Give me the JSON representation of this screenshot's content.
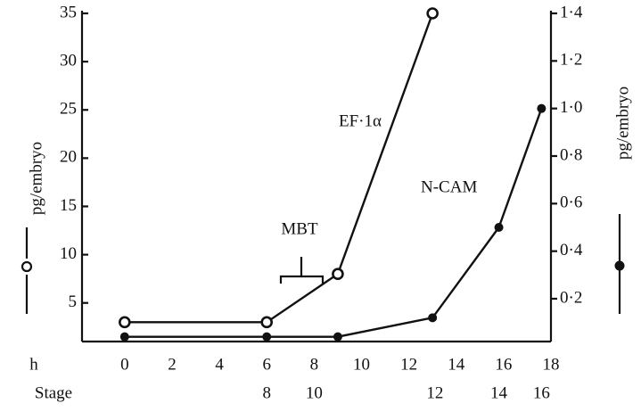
{
  "chart_data": {
    "type": "line",
    "xlabel": "h",
    "x2label": "Stage",
    "ylabel": "pg/embryo",
    "y2label": "pg/embryo",
    "xlim": [
      -1.8,
      18
    ],
    "xticks": [
      0,
      2,
      4,
      6,
      8,
      10,
      12,
      14,
      16,
      18
    ],
    "x2ticks": [
      {
        "value": 6,
        "label": "8"
      },
      {
        "value": 8,
        "label": "10"
      },
      {
        "value": 13.1,
        "label": "12"
      },
      {
        "value": 15.8,
        "label": "14"
      },
      {
        "value": 17.6,
        "label": "16"
      }
    ],
    "ylim": [
      1,
      35
    ],
    "yticks": [
      5,
      10,
      15,
      20,
      25,
      30,
      35
    ],
    "y2lim": [
      0.02,
      1.4
    ],
    "y2ticks": [
      {
        "value": 0.2,
        "label": "0·2"
      },
      {
        "value": 0.4,
        "label": "0·4"
      },
      {
        "value": 0.6,
        "label": "0·6"
      },
      {
        "value": 0.8,
        "label": "0·8"
      },
      {
        "value": 1.0,
        "label": "1·0"
      },
      {
        "value": 1.2,
        "label": "1·2"
      },
      {
        "value": 1.4,
        "label": "1·4"
      }
    ],
    "annotation": "MBT",
    "series": [
      {
        "name": "EF·1α",
        "color": "#111111",
        "marker": "open",
        "x": [
          0,
          6,
          9,
          13
        ],
        "values": [
          3,
          3,
          8,
          35
        ]
      },
      {
        "name": "N-CAM",
        "color": "#111111",
        "marker": "filled",
        "axis": "y2",
        "x": [
          0,
          6,
          9,
          13,
          15.8,
          17.6
        ],
        "values": [
          0.04,
          0.04,
          0.04,
          0.12,
          0.5,
          1.0
        ]
      }
    ]
  }
}
